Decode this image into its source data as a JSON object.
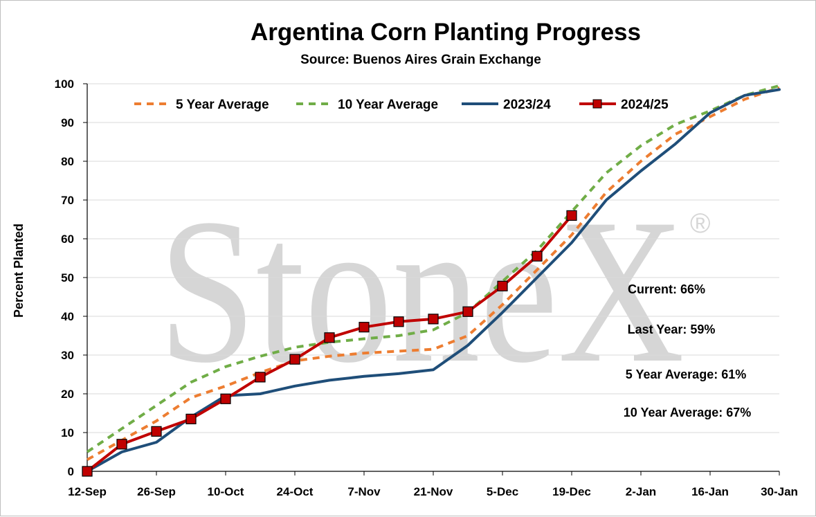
{
  "chart_data": {
    "type": "line",
    "title": "Argentina Corn Planting Progress",
    "subtitle": "Source: Buenos Aires Grain Exchange",
    "ylabel": "Percent Planted",
    "xlabel": "",
    "ylim": [
      0,
      100
    ],
    "yticks": [
      "0",
      "10",
      "20",
      "30",
      "40",
      "50",
      "60",
      "70",
      "80",
      "90",
      "100"
    ],
    "xticks": [
      "12-Sep",
      "26-Sep",
      "10-Oct",
      "24-Oct",
      "7-Nov",
      "21-Nov",
      "5-Dec",
      "19-Dec",
      "2-Jan",
      "16-Jan",
      "30-Jan"
    ],
    "x": [
      "12-Sep",
      "19-Sep",
      "26-Sep",
      "3-Oct",
      "10-Oct",
      "17-Oct",
      "24-Oct",
      "31-Oct",
      "7-Nov",
      "14-Nov",
      "21-Nov",
      "28-Nov",
      "5-Dec",
      "12-Dec",
      "19-Dec",
      "26-Dec",
      "2-Jan",
      "9-Jan",
      "16-Jan",
      "23-Jan",
      "30-Jan"
    ],
    "grid": "horizontal",
    "legend": "top",
    "watermark": "StoneX",
    "series": [
      {
        "name": "5 Year Average",
        "color": "#ED7D31",
        "style": "dashed",
        "values": [
          3,
          8,
          13,
          19,
          22,
          25.5,
          28.5,
          29.7,
          30.5,
          31,
          31.5,
          35,
          43,
          52,
          61,
          72,
          80,
          87,
          91.5,
          96,
          99
        ]
      },
      {
        "name": "10 Year Average",
        "color": "#70AD47",
        "style": "dashed",
        "values": [
          5,
          11,
          17,
          23,
          27,
          29.7,
          32,
          33.3,
          34.2,
          35,
          36.5,
          41,
          49,
          57,
          67,
          77,
          84,
          89.5,
          93,
          97,
          99.5
        ]
      },
      {
        "name": "2023/24",
        "color": "#1F4E79",
        "style": "solid",
        "values": [
          0,
          5,
          7.5,
          14,
          19.5,
          20,
          22,
          23.5,
          24.5,
          25.2,
          26.2,
          32.5,
          41,
          50,
          59,
          70,
          77.5,
          84.5,
          92.5,
          97,
          98.5
        ]
      },
      {
        "name": "2024/25",
        "color": "#C00000",
        "style": "solid-markers",
        "values": [
          0,
          7,
          10.3,
          13.5,
          18.7,
          24.3,
          28.9,
          34.5,
          37.2,
          38.6,
          39.3,
          41.2,
          47.8,
          55.5,
          66,
          null,
          null,
          null,
          null,
          null,
          null
        ]
      }
    ],
    "annotations": [
      "Current: 66%",
      "Last Year: 59%",
      "5 Year Average: 61%",
      "10 Year Average: 67%"
    ]
  }
}
